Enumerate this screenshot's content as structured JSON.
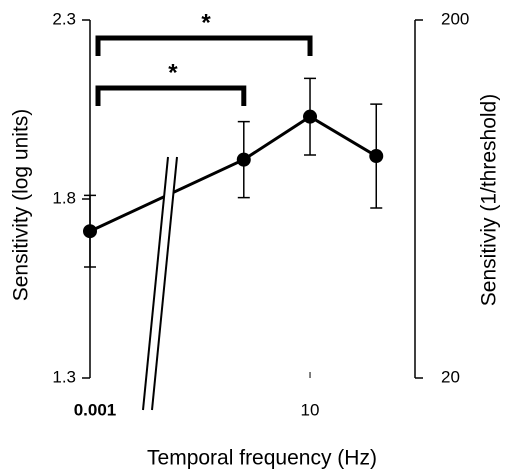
{
  "chart_data": {
    "type": "line",
    "x_label": "Temporal frequency (Hz)",
    "y_label": "Sensitivity (log units)",
    "y2_label": "Sensitiviy (1/threshold)",
    "x": [
      0.001,
      5,
      10,
      20
    ],
    "xscale": "log",
    "axis_break": true,
    "xlim": [
      0.001,
      30
    ],
    "xticks": [
      0.001,
      10
    ],
    "series": [
      {
        "color": "#000000",
        "values": [
          1.71,
          1.91,
          2.03,
          1.92
        ],
        "errors": [
          0.1,
          0.106,
          0.107,
          0.145
        ]
      }
    ],
    "ylim": [
      1.3,
      2.3
    ],
    "yticks": [
      1.3,
      1.8,
      2.3
    ],
    "y2lim": [
      20,
      200
    ],
    "y2ticks": [
      20,
      200
    ],
    "y2scale": "log",
    "annotations": [
      {
        "label": "*",
        "x": [
          0.001,
          10
        ]
      },
      {
        "label": "*",
        "x": [
          0.001,
          5
        ]
      }
    ]
  }
}
